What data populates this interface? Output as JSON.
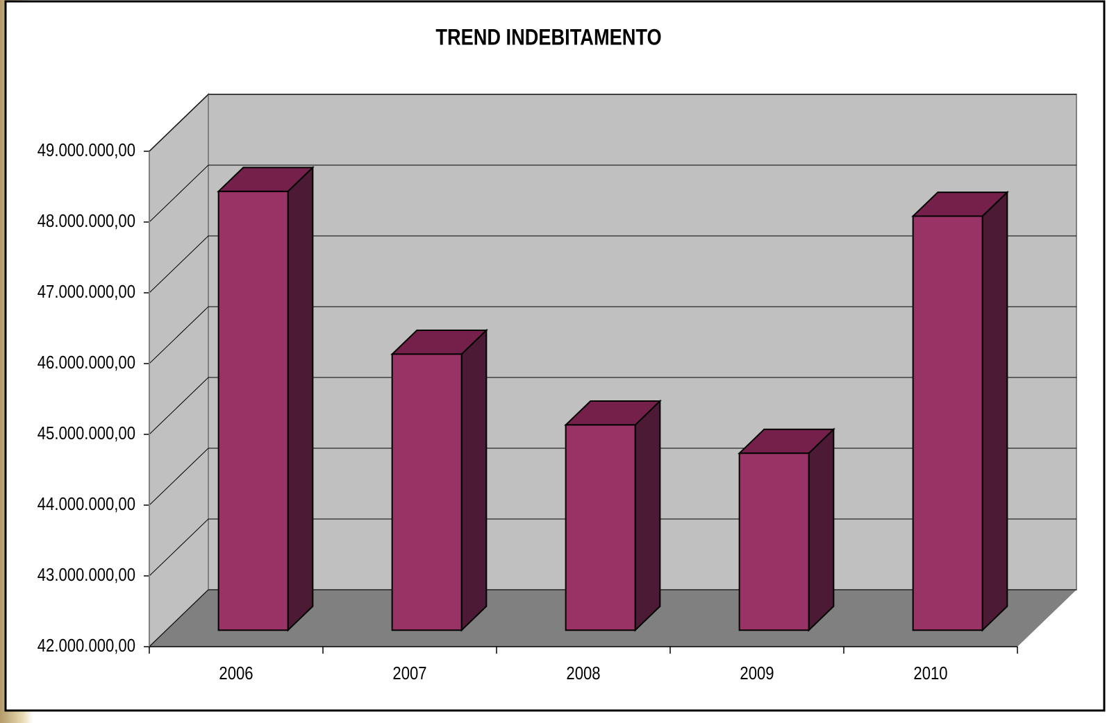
{
  "chart_data": {
    "type": "bar3d",
    "title": "TREND INDEBITAMENTO",
    "categories": [
      "2006",
      "2007",
      "2008",
      "2009",
      "2010"
    ],
    "values": [
      48200000,
      45900000,
      44900000,
      44500000,
      47850000
    ],
    "color": "#993366",
    "ylim": [
      42000000,
      49000000
    ],
    "yticks": [
      {
        "value": 42000000,
        "label": "42.000.000,00"
      },
      {
        "value": 43000000,
        "label": "43.000.000,00"
      },
      {
        "value": 44000000,
        "label": "44.000.000,00"
      },
      {
        "value": 45000000,
        "label": "45.000.000,00"
      },
      {
        "value": 46000000,
        "label": "46.000.000,00"
      },
      {
        "value": 47000000,
        "label": "47.000.000,00"
      },
      {
        "value": 48000000,
        "label": "48.000.000,00"
      },
      {
        "value": 49000000,
        "label": "49.000.000,00"
      }
    ],
    "grid": true
  }
}
